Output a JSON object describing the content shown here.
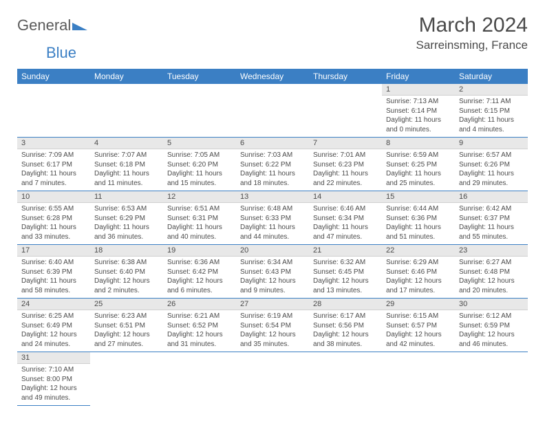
{
  "logo": {
    "general": "General",
    "blue": "Blue"
  },
  "title": "March 2024",
  "location": "Sarreinsming, France",
  "colors": {
    "header_bg": "#3b7fc4",
    "header_text": "#ffffff",
    "daynum_bg": "#e8e8e8",
    "text": "#4a4a4a",
    "row_border": "#3b7fc4"
  },
  "weekdays": [
    "Sunday",
    "Monday",
    "Tuesday",
    "Wednesday",
    "Thursday",
    "Friday",
    "Saturday"
  ],
  "weeks": [
    [
      null,
      null,
      null,
      null,
      null,
      {
        "n": "1",
        "sr": "Sunrise: 7:13 AM",
        "ss": "Sunset: 6:14 PM",
        "dl": "Daylight: 11 hours and 0 minutes."
      },
      {
        "n": "2",
        "sr": "Sunrise: 7:11 AM",
        "ss": "Sunset: 6:15 PM",
        "dl": "Daylight: 11 hours and 4 minutes."
      }
    ],
    [
      {
        "n": "3",
        "sr": "Sunrise: 7:09 AM",
        "ss": "Sunset: 6:17 PM",
        "dl": "Daylight: 11 hours and 7 minutes."
      },
      {
        "n": "4",
        "sr": "Sunrise: 7:07 AM",
        "ss": "Sunset: 6:18 PM",
        "dl": "Daylight: 11 hours and 11 minutes."
      },
      {
        "n": "5",
        "sr": "Sunrise: 7:05 AM",
        "ss": "Sunset: 6:20 PM",
        "dl": "Daylight: 11 hours and 15 minutes."
      },
      {
        "n": "6",
        "sr": "Sunrise: 7:03 AM",
        "ss": "Sunset: 6:22 PM",
        "dl": "Daylight: 11 hours and 18 minutes."
      },
      {
        "n": "7",
        "sr": "Sunrise: 7:01 AM",
        "ss": "Sunset: 6:23 PM",
        "dl": "Daylight: 11 hours and 22 minutes."
      },
      {
        "n": "8",
        "sr": "Sunrise: 6:59 AM",
        "ss": "Sunset: 6:25 PM",
        "dl": "Daylight: 11 hours and 25 minutes."
      },
      {
        "n": "9",
        "sr": "Sunrise: 6:57 AM",
        "ss": "Sunset: 6:26 PM",
        "dl": "Daylight: 11 hours and 29 minutes."
      }
    ],
    [
      {
        "n": "10",
        "sr": "Sunrise: 6:55 AM",
        "ss": "Sunset: 6:28 PM",
        "dl": "Daylight: 11 hours and 33 minutes."
      },
      {
        "n": "11",
        "sr": "Sunrise: 6:53 AM",
        "ss": "Sunset: 6:29 PM",
        "dl": "Daylight: 11 hours and 36 minutes."
      },
      {
        "n": "12",
        "sr": "Sunrise: 6:51 AM",
        "ss": "Sunset: 6:31 PM",
        "dl": "Daylight: 11 hours and 40 minutes."
      },
      {
        "n": "13",
        "sr": "Sunrise: 6:48 AM",
        "ss": "Sunset: 6:33 PM",
        "dl": "Daylight: 11 hours and 44 minutes."
      },
      {
        "n": "14",
        "sr": "Sunrise: 6:46 AM",
        "ss": "Sunset: 6:34 PM",
        "dl": "Daylight: 11 hours and 47 minutes."
      },
      {
        "n": "15",
        "sr": "Sunrise: 6:44 AM",
        "ss": "Sunset: 6:36 PM",
        "dl": "Daylight: 11 hours and 51 minutes."
      },
      {
        "n": "16",
        "sr": "Sunrise: 6:42 AM",
        "ss": "Sunset: 6:37 PM",
        "dl": "Daylight: 11 hours and 55 minutes."
      }
    ],
    [
      {
        "n": "17",
        "sr": "Sunrise: 6:40 AM",
        "ss": "Sunset: 6:39 PM",
        "dl": "Daylight: 11 hours and 58 minutes."
      },
      {
        "n": "18",
        "sr": "Sunrise: 6:38 AM",
        "ss": "Sunset: 6:40 PM",
        "dl": "Daylight: 12 hours and 2 minutes."
      },
      {
        "n": "19",
        "sr": "Sunrise: 6:36 AM",
        "ss": "Sunset: 6:42 PM",
        "dl": "Daylight: 12 hours and 6 minutes."
      },
      {
        "n": "20",
        "sr": "Sunrise: 6:34 AM",
        "ss": "Sunset: 6:43 PM",
        "dl": "Daylight: 12 hours and 9 minutes."
      },
      {
        "n": "21",
        "sr": "Sunrise: 6:32 AM",
        "ss": "Sunset: 6:45 PM",
        "dl": "Daylight: 12 hours and 13 minutes."
      },
      {
        "n": "22",
        "sr": "Sunrise: 6:29 AM",
        "ss": "Sunset: 6:46 PM",
        "dl": "Daylight: 12 hours and 17 minutes."
      },
      {
        "n": "23",
        "sr": "Sunrise: 6:27 AM",
        "ss": "Sunset: 6:48 PM",
        "dl": "Daylight: 12 hours and 20 minutes."
      }
    ],
    [
      {
        "n": "24",
        "sr": "Sunrise: 6:25 AM",
        "ss": "Sunset: 6:49 PM",
        "dl": "Daylight: 12 hours and 24 minutes."
      },
      {
        "n": "25",
        "sr": "Sunrise: 6:23 AM",
        "ss": "Sunset: 6:51 PM",
        "dl": "Daylight: 12 hours and 27 minutes."
      },
      {
        "n": "26",
        "sr": "Sunrise: 6:21 AM",
        "ss": "Sunset: 6:52 PM",
        "dl": "Daylight: 12 hours and 31 minutes."
      },
      {
        "n": "27",
        "sr": "Sunrise: 6:19 AM",
        "ss": "Sunset: 6:54 PM",
        "dl": "Daylight: 12 hours and 35 minutes."
      },
      {
        "n": "28",
        "sr": "Sunrise: 6:17 AM",
        "ss": "Sunset: 6:56 PM",
        "dl": "Daylight: 12 hours and 38 minutes."
      },
      {
        "n": "29",
        "sr": "Sunrise: 6:15 AM",
        "ss": "Sunset: 6:57 PM",
        "dl": "Daylight: 12 hours and 42 minutes."
      },
      {
        "n": "30",
        "sr": "Sunrise: 6:12 AM",
        "ss": "Sunset: 6:59 PM",
        "dl": "Daylight: 12 hours and 46 minutes."
      }
    ],
    [
      {
        "n": "31",
        "sr": "Sunrise: 7:10 AM",
        "ss": "Sunset: 8:00 PM",
        "dl": "Daylight: 12 hours and 49 minutes."
      },
      null,
      null,
      null,
      null,
      null,
      null
    ]
  ]
}
